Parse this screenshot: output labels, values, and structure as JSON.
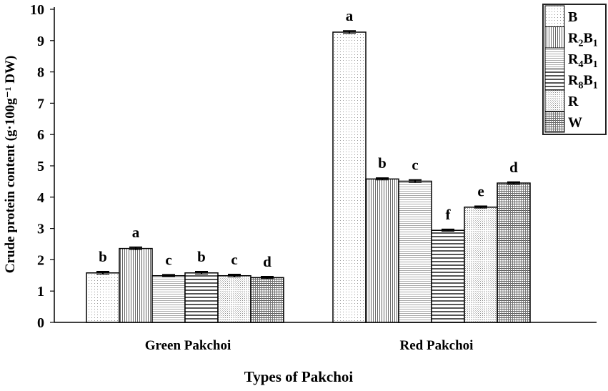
{
  "chart_data": {
    "type": "bar",
    "title": "",
    "xlabel": "Types of Pakchoi",
    "ylabel": "Crude protein content (g·100g⁻¹ DW)",
    "ylim": [
      0,
      10
    ],
    "yticks": [
      "0",
      "1",
      "2",
      "3",
      "4",
      "5",
      "6",
      "7",
      "8",
      "9",
      "10"
    ],
    "categories": [
      "Green Pakchoi",
      "Red Pakchoi"
    ],
    "grid": false,
    "legend_position": "top-right",
    "series": [
      {
        "name": "B",
        "legend_main": "B",
        "legend_sub": "",
        "pattern": "dots",
        "values": [
          1.58,
          9.27
        ],
        "errors": [
          0.04,
          0.04
        ],
        "letters": [
          "b",
          "a"
        ]
      },
      {
        "name": "R2B1",
        "legend_main": "R",
        "legend_sub": "2",
        "legend_tail": "B",
        "legend_tail_sub": "1",
        "pattern": "vlines",
        "values": [
          2.36,
          4.58
        ],
        "errors": [
          0.04,
          0.03
        ],
        "letters": [
          "a",
          "b"
        ]
      },
      {
        "name": "R4B1",
        "legend_main": "R",
        "legend_sub": "4",
        "legend_tail": "B",
        "legend_tail_sub": "1",
        "pattern": "hlines-light",
        "values": [
          1.49,
          4.51
        ],
        "errors": [
          0.03,
          0.04
        ],
        "letters": [
          "c",
          "c"
        ]
      },
      {
        "name": "R8B1",
        "legend_main": "R",
        "legend_sub": "8",
        "legend_tail": "B",
        "legend_tail_sub": "1",
        "pattern": "hlines-bold",
        "values": [
          1.58,
          2.94
        ],
        "errors": [
          0.04,
          0.03
        ],
        "letters": [
          "b",
          "f"
        ]
      },
      {
        "name": "R",
        "legend_main": "R",
        "legend_sub": "",
        "pattern": "dense-dots",
        "values": [
          1.49,
          3.68
        ],
        "errors": [
          0.04,
          0.03
        ],
        "letters": [
          "c",
          "e"
        ]
      },
      {
        "name": "W",
        "legend_main": "W",
        "legend_sub": "",
        "pattern": "grid",
        "values": [
          1.43,
          4.45
        ],
        "errors": [
          0.03,
          0.03
        ],
        "letters": [
          "d",
          "d"
        ]
      }
    ]
  }
}
